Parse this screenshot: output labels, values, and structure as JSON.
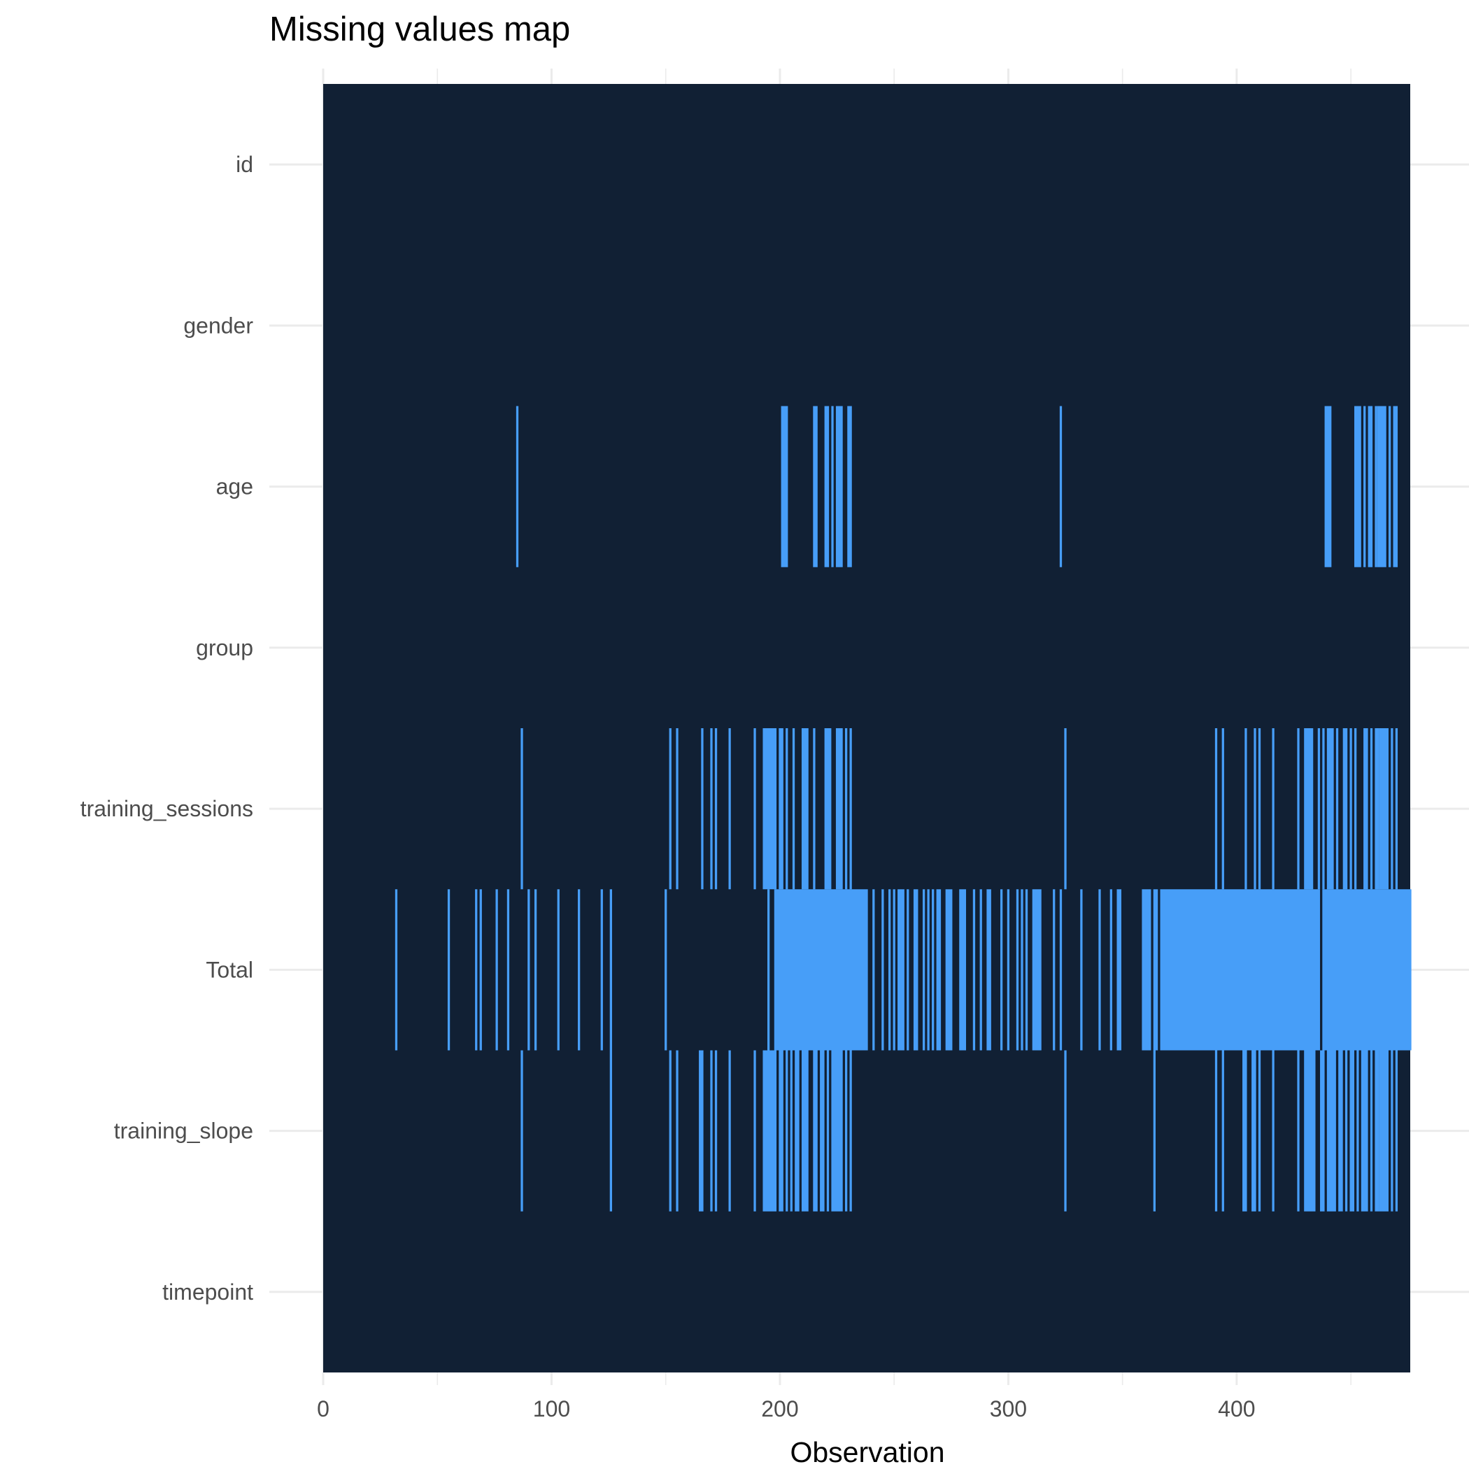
{
  "chart_data": {
    "type": "heatmap",
    "title": "Missing values map",
    "xlabel": "Observation",
    "ylabel": "",
    "xlim": [
      0,
      476
    ],
    "x_ticks": [
      0,
      100,
      200,
      300,
      400
    ],
    "rows": [
      "id",
      "gender",
      "age",
      "group",
      "training_sessions",
      "Total",
      "training_slope",
      "timepoint"
    ],
    "legend": "none",
    "grid": true,
    "colors": {
      "present": "#112034",
      "missing": "#479ef8",
      "grid": "#ebebeb",
      "background": "#ffffff"
    },
    "missing": {
      "id": [],
      "gender": [],
      "age": [
        [
          85,
          85
        ],
        [
          201,
          203
        ],
        [
          215,
          216
        ],
        [
          220,
          221
        ],
        [
          223,
          223
        ],
        [
          225,
          227
        ],
        [
          230,
          231
        ],
        [
          323,
          323
        ],
        [
          439,
          441
        ],
        [
          452,
          454
        ],
        [
          456,
          456
        ],
        [
          458,
          459
        ],
        [
          461,
          461
        ],
        [
          462,
          465
        ],
        [
          467,
          467
        ],
        [
          469,
          470
        ]
      ],
      "group": [],
      "training_sessions": [
        [
          87,
          87
        ],
        [
          152,
          152
        ],
        [
          155,
          155
        ],
        [
          166,
          166
        ],
        [
          170,
          170
        ],
        [
          172,
          172
        ],
        [
          178,
          178
        ],
        [
          189,
          189
        ],
        [
          193,
          198
        ],
        [
          200,
          201
        ],
        [
          203,
          203
        ],
        [
          206,
          206
        ],
        [
          210,
          212
        ],
        [
          215,
          215
        ],
        [
          220,
          222
        ],
        [
          225,
          227
        ],
        [
          229,
          229
        ],
        [
          231,
          231
        ],
        [
          325,
          325
        ],
        [
          391,
          391
        ],
        [
          394,
          394
        ],
        [
          404,
          404
        ],
        [
          408,
          408
        ],
        [
          410,
          410
        ],
        [
          416,
          416
        ],
        [
          427,
          427
        ],
        [
          430,
          433
        ],
        [
          436,
          436
        ],
        [
          438,
          438
        ],
        [
          440,
          442
        ],
        [
          444,
          444
        ],
        [
          447,
          448
        ],
        [
          450,
          450
        ],
        [
          452,
          452
        ],
        [
          456,
          457
        ],
        [
          459,
          459
        ],
        [
          461,
          462
        ],
        [
          463,
          466
        ],
        [
          468,
          468
        ],
        [
          470,
          470
        ]
      ],
      "Total": [
        [
          32,
          32
        ],
        [
          55,
          55
        ],
        [
          67,
          67
        ],
        [
          69,
          69
        ],
        [
          76,
          76
        ],
        [
          81,
          81
        ],
        [
          90,
          90
        ],
        [
          93,
          93
        ],
        [
          103,
          103
        ],
        [
          112,
          112
        ],
        [
          122,
          122
        ],
        [
          126,
          126
        ],
        [
          150,
          150
        ],
        [
          195,
          195
        ],
        [
          198,
          238
        ],
        [
          241,
          241
        ],
        [
          245,
          245
        ],
        [
          248,
          248
        ],
        [
          250,
          250
        ],
        [
          252,
          254
        ],
        [
          256,
          256
        ],
        [
          259,
          260
        ],
        [
          263,
          263
        ],
        [
          265,
          265
        ],
        [
          267,
          267
        ],
        [
          269,
          270
        ],
        [
          273,
          275
        ],
        [
          279,
          281
        ],
        [
          285,
          285
        ],
        [
          288,
          288
        ],
        [
          291,
          292
        ],
        [
          297,
          297
        ],
        [
          300,
          300
        ],
        [
          304,
          304
        ],
        [
          306,
          306
        ],
        [
          308,
          308
        ],
        [
          311,
          314
        ],
        [
          320,
          320
        ],
        [
          323,
          323
        ],
        [
          332,
          332
        ],
        [
          340,
          340
        ],
        [
          345,
          345
        ],
        [
          348,
          349
        ],
        [
          359,
          362
        ],
        [
          364,
          365
        ],
        [
          367,
          436
        ],
        [
          438,
          476
        ]
      ],
      "training_slope": [
        [
          87,
          87
        ],
        [
          126,
          126
        ],
        [
          152,
          152
        ],
        [
          155,
          155
        ],
        [
          165,
          166
        ],
        [
          170,
          170
        ],
        [
          172,
          172
        ],
        [
          178,
          178
        ],
        [
          189,
          189
        ],
        [
          193,
          198
        ],
        [
          200,
          201
        ],
        [
          203,
          203
        ],
        [
          205,
          205
        ],
        [
          207,
          208
        ],
        [
          210,
          212
        ],
        [
          215,
          216
        ],
        [
          218,
          219
        ],
        [
          221,
          221
        ],
        [
          223,
          227
        ],
        [
          229,
          229
        ],
        [
          231,
          231
        ],
        [
          325,
          325
        ],
        [
          364,
          364
        ],
        [
          391,
          391
        ],
        [
          394,
          394
        ],
        [
          403,
          404
        ],
        [
          407,
          408
        ],
        [
          410,
          410
        ],
        [
          416,
          416
        ],
        [
          427,
          427
        ],
        [
          430,
          434
        ],
        [
          437,
          438
        ],
        [
          440,
          443
        ],
        [
          445,
          446
        ],
        [
          448,
          448
        ],
        [
          450,
          451
        ],
        [
          453,
          453
        ],
        [
          455,
          457
        ],
        [
          459,
          459
        ],
        [
          461,
          462
        ],
        [
          463,
          466
        ],
        [
          468,
          468
        ],
        [
          470,
          470
        ]
      ],
      "timepoint": []
    }
  }
}
